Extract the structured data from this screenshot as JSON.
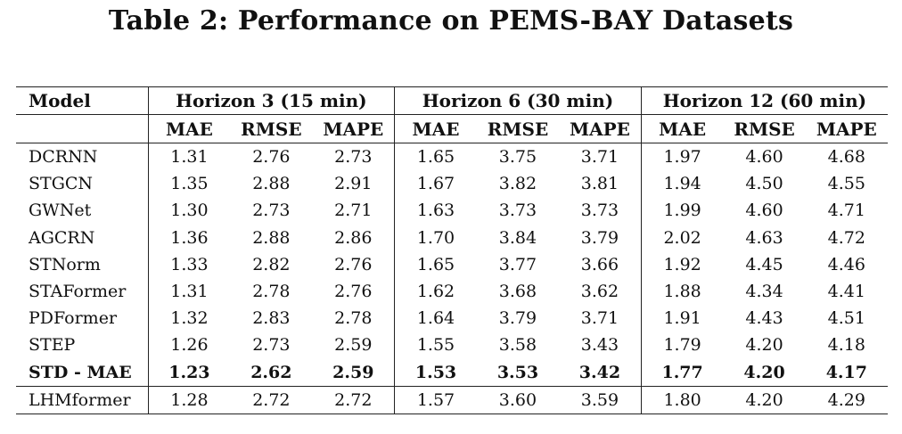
{
  "caption": "Table 2: Performance on PEMS-BAY Datasets",
  "header": {
    "model_label": "Model",
    "groups": [
      "Horizon 3 (15 min)",
      "Horizon 6 (30 min)",
      "Horizon 12 (60 min)"
    ],
    "metrics": [
      "MAE",
      "RMSE",
      "MAPE",
      "MAE",
      "RMSE",
      "MAPE",
      "MAE",
      "RMSE",
      "MAPE"
    ]
  },
  "rows": [
    {
      "model": "DCRNN",
      "values": [
        "1.31",
        "2.76",
        "2.73",
        "1.65",
        "3.75",
        "3.71",
        "1.97",
        "4.60",
        "4.68"
      ]
    },
    {
      "model": "STGCN",
      "values": [
        "1.35",
        "2.88",
        "2.91",
        "1.67",
        "3.82",
        "3.81",
        "1.94",
        "4.50",
        "4.55"
      ]
    },
    {
      "model": "GWNet",
      "values": [
        "1.30",
        "2.73",
        "2.71",
        "1.63",
        "3.73",
        "3.73",
        "1.99",
        "4.60",
        "4.71"
      ]
    },
    {
      "model": "AGCRN",
      "values": [
        "1.36",
        "2.88",
        "2.86",
        "1.70",
        "3.84",
        "3.79",
        "2.02",
        "4.63",
        "4.72"
      ]
    },
    {
      "model": "STNorm",
      "values": [
        "1.33",
        "2.82",
        "2.76",
        "1.65",
        "3.77",
        "3.66",
        "1.92",
        "4.45",
        "4.46"
      ]
    },
    {
      "model": "STAFormer",
      "values": [
        "1.31",
        "2.78",
        "2.76",
        "1.62",
        "3.68",
        "3.62",
        "1.88",
        "4.34",
        "4.41"
      ]
    },
    {
      "model": "PDFormer",
      "values": [
        "1.32",
        "2.83",
        "2.78",
        "1.64",
        "3.79",
        "3.71",
        "1.91",
        "4.43",
        "4.51"
      ]
    },
    {
      "model": "STEP",
      "values": [
        "1.26",
        "2.73",
        "2.59",
        "1.55",
        "3.58",
        "3.43",
        "1.79",
        "4.20",
        "4.18"
      ]
    },
    {
      "model": "STD - MAE",
      "values": [
        "1.23",
        "2.62",
        "2.59",
        "1.53",
        "3.53",
        "3.42",
        "1.77",
        "4.20",
        "4.17"
      ],
      "bold": true
    },
    {
      "model": "LHMformer",
      "values": [
        "1.28",
        "2.72",
        "2.72",
        "1.57",
        "3.60",
        "3.59",
        "1.80",
        "4.20",
        "4.29"
      ]
    }
  ]
}
